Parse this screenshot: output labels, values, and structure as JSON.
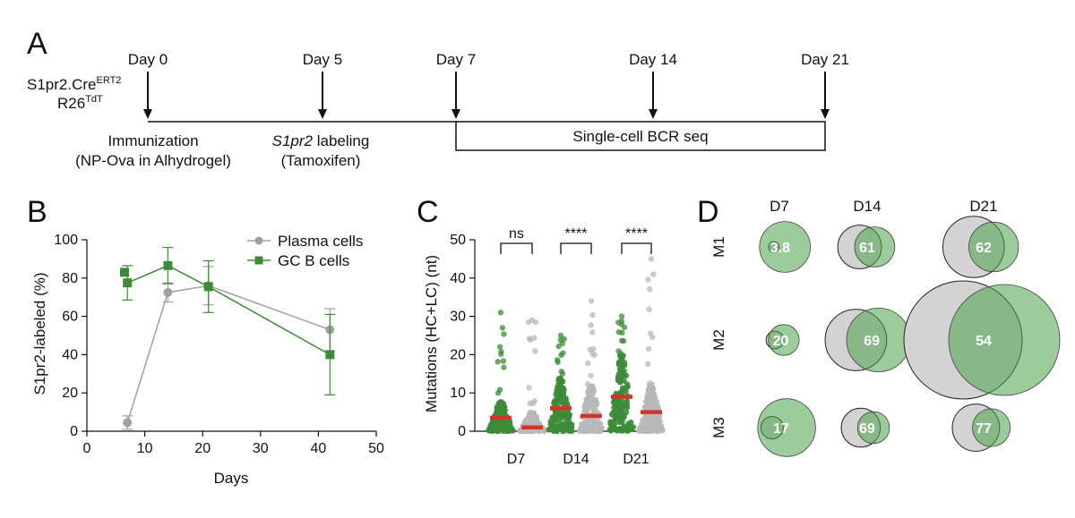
{
  "panels": {
    "A": "A",
    "B": "B",
    "C": "C",
    "D": "D"
  },
  "timeline": {
    "mouse_line1": "S1pr2.Cre",
    "mouse_line1_sup": "ERT2",
    "mouse_line2": "R26",
    "mouse_line2_sup": "TdT",
    "days": [
      "Day 0",
      "Day 5",
      "Day 7",
      "Day 14",
      "Day 21"
    ],
    "immunization_label": "Immunization",
    "immunization_detail": "(NP-Ova in Alhydrogel)",
    "labeling_gene": "S1pr2",
    "labeling_label": " labeling",
    "labeling_detail": "(Tamoxifen)",
    "seq_box": "Single-cell BCR seq"
  },
  "chart_data": [
    {
      "type": "line",
      "panel": "B",
      "xlabel": "Days",
      "ylabel": "S1pr2-labeled (%)",
      "xlim": [
        0,
        50
      ],
      "ylim": [
        0,
        100
      ],
      "xticks": [
        "0",
        "10",
        "20",
        "30",
        "40",
        "50"
      ],
      "yticks": [
        "0",
        "20",
        "40",
        "60",
        "80",
        "100"
      ],
      "legend_position": "top-right",
      "series": [
        {
          "name": "Plasma cells",
          "color": "#a0a0a0",
          "marker": "circle",
          "points": [
            {
              "x": 7,
              "y": 4.5,
              "err": 3.5
            },
            {
              "x": 14,
              "y": 72.5,
              "err": 5
            },
            {
              "x": 21,
              "y": 76,
              "err": 10
            },
            {
              "x": 42,
              "y": 53,
              "err": 11
            }
          ]
        },
        {
          "name": "GC B cells",
          "color": "#3d8b37",
          "marker": "square",
          "points": [
            {
              "x": 7,
              "y": 77.5,
              "err": 9
            },
            {
              "x": 14,
              "y": 86.5,
              "err": 9.5
            },
            {
              "x": 21,
              "y": 75.5,
              "err": 13.5
            },
            {
              "x": 42,
              "y": 40,
              "err": 21
            }
          ],
          "extra_points": [
            {
              "x": 6.5,
              "y": 83
            }
          ]
        }
      ]
    },
    {
      "type": "scatter",
      "panel": "C",
      "ylabel": "Mutations (HC+LC) (nt)",
      "ylim": [
        0,
        50
      ],
      "yticks": [
        "0",
        "10",
        "20",
        "30",
        "40",
        "50"
      ],
      "categories": [
        "D7",
        "D14",
        "D21"
      ],
      "groups": [
        {
          "category": "D7",
          "cell": "GC B cells",
          "color": "#3d8b37",
          "median": 3.5,
          "max": 31,
          "bulk_top": 8
        },
        {
          "category": "D7",
          "cell": "Plasma cells",
          "color": "#b8b8b8",
          "median": 1,
          "max": 29,
          "bulk_top": 5
        },
        {
          "category": "D14",
          "cell": "GC B cells",
          "color": "#3d8b37",
          "median": 6,
          "max": 25,
          "bulk_top": 14
        },
        {
          "category": "D14",
          "cell": "Plasma cells",
          "color": "#b8b8b8",
          "median": 4,
          "max": 34,
          "bulk_top": 12
        },
        {
          "category": "D21",
          "cell": "GC B cells",
          "color": "#3d8b37",
          "median": 9,
          "max": 30,
          "bulk_top": 20
        },
        {
          "category": "D21",
          "cell": "Plasma cells",
          "color": "#b8b8b8",
          "median": 5,
          "max": 45,
          "bulk_top": 12
        }
      ],
      "significance": [
        "ns",
        "****",
        "****"
      ]
    },
    {
      "type": "venn",
      "panel": "D",
      "columns": [
        "D7",
        "D14",
        "D21"
      ],
      "rows": [
        "M1",
        "M2",
        "M3"
      ],
      "cells": [
        {
          "row": "M1",
          "col": "D7",
          "value": "3.8",
          "gray_size": 0.09,
          "green_size": 0.43
        },
        {
          "row": "M1",
          "col": "D14",
          "value": "61",
          "gray_size": 0.37,
          "green_size": 0.34
        },
        {
          "row": "M1",
          "col": "D21",
          "value": "62",
          "gray_size": 0.52,
          "green_size": 0.42
        },
        {
          "row": "M2",
          "col": "D7",
          "value": "20",
          "gray_size": 0.15,
          "green_size": 0.26
        },
        {
          "row": "M2",
          "col": "D14",
          "value": "69",
          "gray_size": 0.52,
          "green_size": 0.54
        },
        {
          "row": "M2",
          "col": "D21",
          "value": "54",
          "gray_size": 1.0,
          "green_size": 0.94
        },
        {
          "row": "M3",
          "col": "D7",
          "value": "17",
          "gray_size": 0.19,
          "green_size": 0.49
        },
        {
          "row": "M3",
          "col": "D14",
          "value": "69",
          "gray_size": 0.33,
          "green_size": 0.27
        },
        {
          "row": "M3",
          "col": "D21",
          "value": "77",
          "gray_size": 0.4,
          "green_size": 0.32
        }
      ],
      "gray_color": "#d3d3d3",
      "green_color": "#4aa14a"
    }
  ]
}
